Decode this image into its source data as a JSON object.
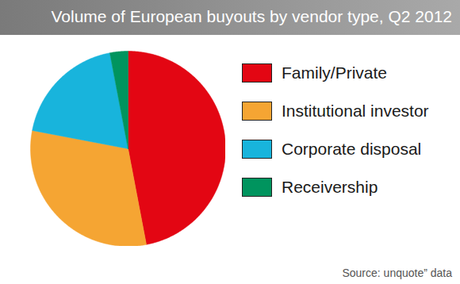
{
  "chart_data": {
    "type": "pie",
    "title": "Volume of European buyouts by vendor type, Q2 2012",
    "categories": [
      "Family/Private",
      "Institutional investor",
      "Corporate disposal",
      "Receivership"
    ],
    "values": [
      47,
      31,
      19,
      3
    ],
    "colors": [
      "#e30613",
      "#f5a533",
      "#18b4dc",
      "#00945e"
    ],
    "legend": "right",
    "source": "Source: unquote” data"
  }
}
